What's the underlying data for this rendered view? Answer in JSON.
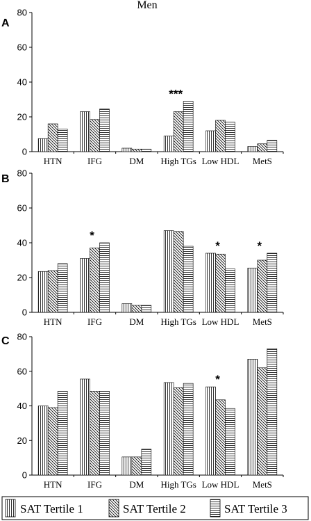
{
  "figure": {
    "title": "Men",
    "legend": [
      {
        "label": "SAT Tertile 1",
        "pattern": "vertical"
      },
      {
        "label": "SAT Tertile 2",
        "pattern": "diagonal"
      },
      {
        "label": "SAT Tertile 3",
        "pattern": "horizontal"
      }
    ]
  },
  "chart_data": [
    {
      "panel": "A",
      "type": "bar",
      "title": "Men",
      "categories": [
        "HTN",
        "IFG",
        "DM",
        "High TGs",
        "Low HDL",
        "MetS"
      ],
      "ylim": [
        0,
        80
      ],
      "yticks": [
        0,
        20,
        40,
        60,
        80
      ],
      "series": [
        {
          "name": "SAT Tertile 1",
          "values": [
            7.5,
            23,
            2,
            9,
            12,
            3
          ]
        },
        {
          "name": "SAT Tertile 2",
          "values": [
            16,
            18.5,
            1.5,
            23,
            18,
            4.5
          ]
        },
        {
          "name": "SAT Tertile 3",
          "values": [
            13,
            24.5,
            1.5,
            29,
            17,
            6.5
          ]
        }
      ],
      "annotations": [
        {
          "category": "High TGs",
          "text": "***"
        }
      ]
    },
    {
      "panel": "B",
      "type": "bar",
      "categories": [
        "HTN",
        "IFG",
        "DM",
        "High TGs",
        "Low HDL",
        "MetS"
      ],
      "ylim": [
        0,
        80
      ],
      "yticks": [
        0,
        20,
        40,
        60,
        80
      ],
      "series": [
        {
          "name": "SAT Tertile 1",
          "values": [
            23.5,
            31,
            5,
            47,
            34,
            25.5
          ]
        },
        {
          "name": "SAT Tertile 2",
          "values": [
            24,
            37,
            4,
            46.5,
            33.5,
            30
          ]
        },
        {
          "name": "SAT Tertile 3",
          "values": [
            28,
            40,
            4,
            38,
            25,
            34
          ]
        }
      ],
      "annotations": [
        {
          "category": "IFG",
          "text": "*"
        },
        {
          "category": "Low HDL",
          "text": "*"
        },
        {
          "category": "MetS",
          "text": "*"
        }
      ]
    },
    {
      "panel": "C",
      "type": "bar",
      "categories": [
        "HTN",
        "IFG",
        "DM",
        "High TGs",
        "Low HDL",
        "MetS"
      ],
      "ylim": [
        0,
        80
      ],
      "yticks": [
        0,
        20,
        40,
        60,
        80
      ],
      "series": [
        {
          "name": "SAT Tertile 1",
          "values": [
            40,
            55.5,
            10.5,
            53.5,
            51,
            67
          ]
        },
        {
          "name": "SAT Tertile 2",
          "values": [
            39,
            48.5,
            10.5,
            50.5,
            43.5,
            62
          ]
        },
        {
          "name": "SAT Tertile 3",
          "values": [
            48.5,
            48.5,
            15,
            53,
            38.5,
            73
          ]
        }
      ],
      "annotations": [
        {
          "category": "Low HDL",
          "text": "*"
        }
      ]
    }
  ]
}
